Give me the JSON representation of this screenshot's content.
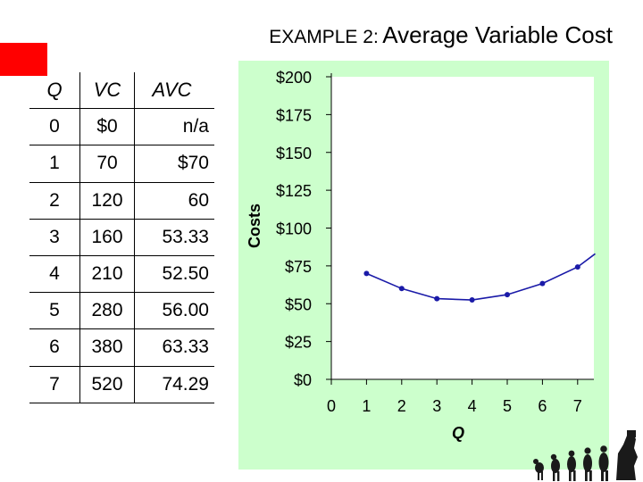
{
  "slide": {
    "title_prefix": "EXAMPLE 2:",
    "title_main": "Average Variable Cost"
  },
  "table": {
    "headers": [
      "Q",
      "VC",
      "AVC"
    ],
    "rows": [
      [
        "0",
        "$0",
        "n/a"
      ],
      [
        "1",
        "70",
        "$70"
      ],
      [
        "2",
        "120",
        "60"
      ],
      [
        "3",
        "160",
        "53.33"
      ],
      [
        "4",
        "210",
        "52.50"
      ],
      [
        "5",
        "280",
        "56.00"
      ],
      [
        "6",
        "380",
        "63.33"
      ],
      [
        "7",
        "520",
        "74.29"
      ]
    ]
  },
  "chart_data": {
    "type": "line",
    "xlabel": "Q",
    "ylabel": "Costs",
    "x": [
      1,
      2,
      3,
      4,
      5,
      6,
      7
    ],
    "series": [
      {
        "values": [
          70,
          60,
          53.33,
          52.5,
          56,
          63.33,
          74.29
        ]
      }
    ],
    "continues_beyond_x": 7.5,
    "continues_beyond_value": 83,
    "xlim": [
      0,
      7.5
    ],
    "ylim": [
      0,
      200
    ],
    "x_ticks": [
      "0",
      "1",
      "2",
      "3",
      "4",
      "5",
      "6",
      "7"
    ],
    "y_ticks": [
      "$0",
      "$25",
      "$50",
      "$75",
      "$100",
      "$125",
      "$150",
      "$175",
      "$200"
    ],
    "y_tick_values": [
      0,
      25,
      50,
      75,
      100,
      125,
      150,
      175,
      200
    ],
    "colors": {
      "plot_background": "#ccffcc",
      "plot_area": "#ffffff",
      "line": "#1a1aa8",
      "marker": "#1a1aa8"
    },
    "grid": false,
    "legend": "none"
  }
}
